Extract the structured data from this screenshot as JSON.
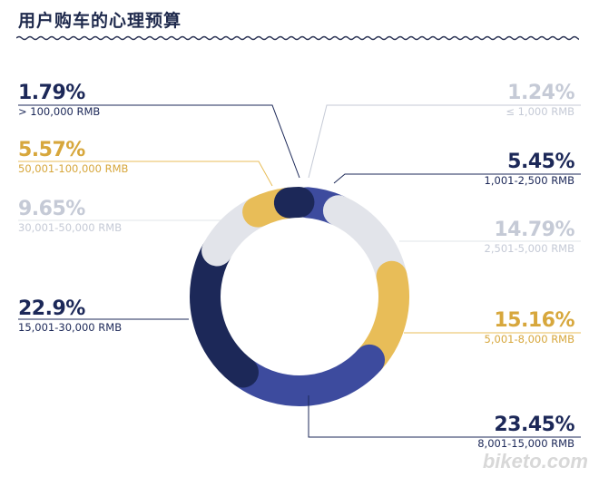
{
  "title": "用户购车的心理预算",
  "watermark": "biketo.com",
  "colors": {
    "navy": "#1c2858",
    "blue": "#3d4b9e",
    "gold": "#e8bd58",
    "light": "#e2e4ea",
    "text_light": "#c5cad6",
    "text_gold": "#d7a73c"
  },
  "chart_data": {
    "type": "pie",
    "title": "用户购车的心理预算",
    "slices": [
      {
        "label": "≤ 1,000 RMB",
        "value": 1.24,
        "pct": "1.24%",
        "color": "#e2e4ea"
      },
      {
        "label": "1,001-2,500 RMB",
        "value": 5.45,
        "pct": "5.45%",
        "color": "#3d4b9e"
      },
      {
        "label": "2,501-5,000 RMB",
        "value": 14.79,
        "pct": "14.79%",
        "color": "#e2e4ea"
      },
      {
        "label": "5,001-8,000 RMB",
        "value": 15.16,
        "pct": "15.16%",
        "color": "#e8bd58"
      },
      {
        "label": "8,001-15,000 RMB",
        "value": 23.45,
        "pct": "23.45%",
        "color": "#3d4b9e"
      },
      {
        "label": "15,001-30,000 RMB",
        "value": 22.9,
        "pct": "22.9%",
        "color": "#1c2858"
      },
      {
        "label": "30,001-50,000 RMB",
        "value": 9.65,
        "pct": "9.65%",
        "color": "#e2e4ea"
      },
      {
        "label": "50,001-100,000 RMB",
        "value": 5.57,
        "pct": "5.57%",
        "color": "#e8bd58"
      },
      {
        "label": "> 100,000 RMB",
        "value": 1.79,
        "pct": "1.79%",
        "color": "#1c2858"
      }
    ]
  }
}
